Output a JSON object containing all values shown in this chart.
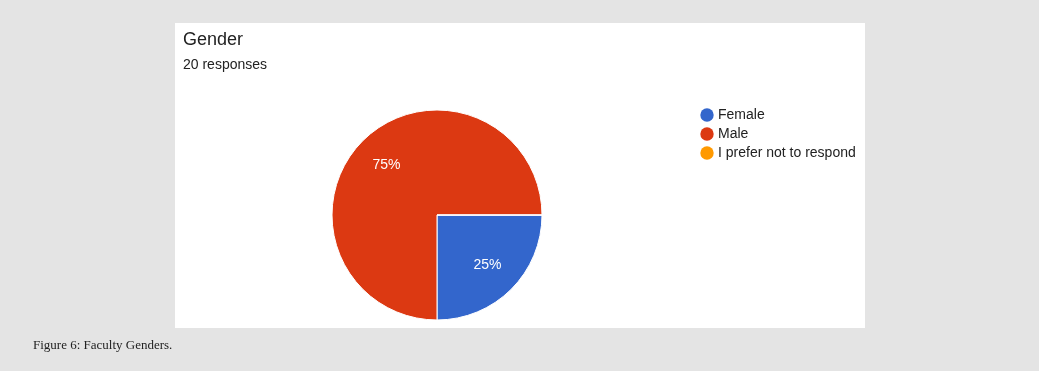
{
  "chart_data": {
    "type": "pie",
    "title": "Gender",
    "subtitle": "20 responses",
    "categories": [
      "Female",
      "Male",
      "I prefer not to respond"
    ],
    "values": [
      25,
      75,
      0
    ],
    "colors": [
      "#3366cc",
      "#dc3912",
      "#ff9900"
    ],
    "value_labels": [
      "25%",
      "75%",
      null
    ],
    "legend": "right",
    "annotations": [
      "Figure 6: Faculty Genders."
    ]
  }
}
